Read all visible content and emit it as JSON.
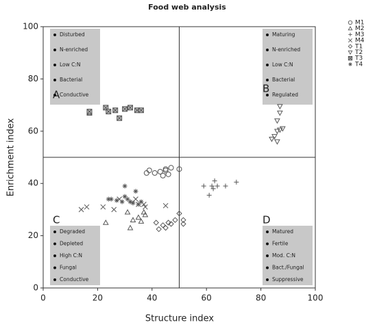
{
  "chart_data": {
    "type": "scatter",
    "title": "Food web analysis",
    "xlabel": "Structure index",
    "ylabel": "Enrichment index",
    "xlim": [
      0,
      100
    ],
    "ylim": [
      0,
      100
    ],
    "xticks": [
      0,
      20,
      40,
      60,
      80,
      100
    ],
    "yticks": [
      0,
      20,
      40,
      60,
      80,
      100
    ],
    "grid": false,
    "legend": "outside-right",
    "reference_lines": {
      "x": 50,
      "y": 50
    },
    "series": [
      {
        "name": "M1",
        "marker": "circle",
        "color": "#555555",
        "x": [
          38,
          39,
          41,
          43,
          45,
          46,
          44,
          47,
          50,
          45
        ],
        "values": [
          44,
          45,
          44,
          44.5,
          45,
          43.5,
          43,
          46,
          45.5,
          45.5
        ]
      },
      {
        "name": "M2",
        "marker": "triangle",
        "color": "#555555",
        "x": [
          23,
          31,
          32,
          33,
          35,
          36,
          37.5,
          37
        ],
        "values": [
          25,
          29,
          23,
          26,
          27,
          25.5,
          28,
          29
        ]
      },
      {
        "name": "M3",
        "marker": "plus",
        "color": "#555555",
        "x": [
          59,
          61,
          62,
          63,
          64,
          67,
          71,
          62.5
        ],
        "values": [
          39,
          35.5,
          39,
          41,
          39,
          39,
          40.5,
          38
        ]
      },
      {
        "name": "M4",
        "marker": "cross",
        "color": "#555555",
        "x": [
          14,
          16,
          22,
          26,
          28,
          35,
          37,
          37.5,
          45,
          34
        ],
        "values": [
          30,
          31,
          31,
          30,
          34,
          32,
          32,
          31,
          31.5,
          34
        ]
      },
      {
        "name": "T1",
        "marker": "diamond",
        "color": "#555555",
        "x": [
          41.5,
          42.5,
          44,
          45,
          47,
          48.5,
          50,
          51.5,
          51.5,
          46
        ],
        "values": [
          25,
          22.5,
          24,
          23,
          24.5,
          26,
          28.5,
          26,
          24.5,
          25
        ]
      },
      {
        "name": "T2",
        "marker": "triangle-down",
        "color": "#555555",
        "x": [
          87,
          87,
          86,
          88,
          86,
          85,
          84,
          86,
          87
        ],
        "values": [
          69.5,
          67,
          64,
          61,
          60,
          58,
          57,
          56,
          60.5
        ]
      },
      {
        "name": "T3",
        "marker": "square-x",
        "color": "#555555",
        "x": [
          17,
          17,
          23,
          24,
          26.5,
          28,
          30,
          32,
          34.5,
          36
        ],
        "values": [
          67,
          67.5,
          69,
          67.5,
          68,
          65,
          68.5,
          69,
          68,
          68
        ]
      },
      {
        "name": "T4",
        "marker": "star",
        "color": "#555555",
        "x": [
          24,
          25,
          27,
          29,
          30,
          30,
          31,
          32,
          33,
          34,
          35,
          36
        ],
        "values": [
          34,
          34,
          33.5,
          33,
          39,
          35,
          34,
          33,
          32.5,
          37,
          32,
          33
        ]
      }
    ],
    "quadrants": [
      {
        "label": "A",
        "items": [
          "Disturbed",
          "N-enriched",
          "Low C:N",
          "Bacterial",
          "Conductive"
        ]
      },
      {
        "label": "B",
        "items": [
          "Maturing",
          "N-enriched",
          "Low C:N",
          "Bacterial",
          "Regulated"
        ]
      },
      {
        "label": "C",
        "items": [
          "Degraded",
          "Depleted",
          "High C:N",
          "Fungal",
          "Conductive"
        ]
      },
      {
        "label": "D",
        "items": [
          "Matured",
          "Fertile",
          "Mod. C:N",
          "Bact./Fungal",
          "Suppressive"
        ]
      }
    ]
  }
}
